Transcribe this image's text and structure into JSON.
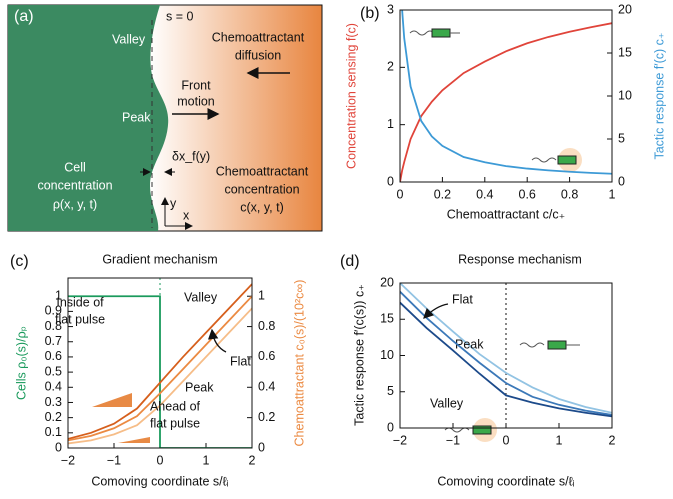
{
  "diagram": {
    "label": "(a)",
    "s_zero": "s = 0",
    "valley": "Valley",
    "peak": "Peak",
    "diffusion": [
      "Chemoattractant",
      "diffusion"
    ],
    "front": [
      "Front",
      "motion"
    ],
    "delta": "δx_f(y)",
    "cell": [
      "Cell",
      "concentration",
      "ρ(x, y, t)"
    ],
    "chemo": [
      "Chemoattractant",
      "concentration",
      "c(x, y, t)"
    ],
    "y_axis": "y",
    "x_axis": "x"
  },
  "chart_data": [
    {
      "type": "line",
      "label": "(b)",
      "x_label": "Chemoattractant   c/c₊",
      "y_label": "Concentration sensing   f(c)",
      "y2_label": "Tactic response   f′(c) c₊",
      "x": [
        0,
        0.01,
        0.02,
        0.05,
        0.1,
        0.15,
        0.2,
        0.3,
        0.4,
        0.5,
        0.6,
        0.7,
        0.8,
        0.9,
        1
      ],
      "xlim": [
        0,
        1
      ],
      "xticks": [
        0,
        0.2,
        0.4,
        0.6,
        0.8,
        1
      ],
      "ylim": [
        0,
        3
      ],
      "yticks": [
        0,
        1,
        2,
        3
      ],
      "y2lim": [
        0,
        20
      ],
      "y2ticks": [
        0,
        5,
        10,
        15,
        20
      ],
      "series": [
        {
          "color": "#e0443a",
          "values": [
            0,
            0.2,
            0.35,
            0.75,
            1.15,
            1.4,
            1.6,
            1.9,
            2.1,
            2.28,
            2.42,
            2.53,
            2.62,
            2.7,
            2.77
          ]
        },
        {
          "color": "#3d9ad6",
          "axis": "y2",
          "values": [
            null,
            20,
            16.7,
            11.1,
            7.1,
            5.3,
            4.2,
            2.9,
            2.3,
            1.85,
            1.56,
            1.35,
            1.19,
            1.06,
            0.96
          ]
        }
      ]
    },
    {
      "type": "line",
      "label": "(c)",
      "title": "Gradient mechanism",
      "x_label": "Comoving coordinate   s/ℓᵢ",
      "y_label": "Cells   ρ₀(s)/ρₚ",
      "y2_label": "Chemoattractant   c₀(s)/(10²c∞)",
      "x": [
        -2,
        -1.5,
        -1,
        -0.5,
        0,
        0.5,
        1,
        1.5,
        2
      ],
      "xlim": [
        -2,
        2
      ],
      "xticks": [
        {
          "value": -2,
          "label": "−2"
        },
        {
          "value": -1,
          "label": "−1"
        },
        0,
        1,
        2
      ],
      "ylim": [
        0,
        1.12
      ],
      "yticks": [
        0,
        0.1,
        0.2,
        0.3,
        0.4,
        0.5,
        0.6,
        0.7,
        0.8,
        0.9,
        1
      ],
      "y2lim": [
        0,
        1.12
      ],
      "y2ticks": [
        0,
        0.2,
        0.4,
        0.6,
        0.8,
        1
      ],
      "annotations": [
        "Inside of",
        "flat pulse",
        "Ahead of",
        "flat pulse"
      ],
      "series": [
        {
          "color": "#1a9a5c",
          "x": [
            -2,
            0,
            0,
            2
          ],
          "values": [
            1,
            1,
            0,
            0
          ]
        },
        {
          "name": "Valley",
          "color": "#d65f1c",
          "axis": "y2",
          "values": [
            0.06,
            0.1,
            0.16,
            0.26,
            0.43,
            0.6,
            0.76,
            0.92,
            1.08
          ]
        },
        {
          "name": "Flat",
          "color": "#eb8a42",
          "axis": "y2",
          "values": [
            0.05,
            0.08,
            0.13,
            0.21,
            0.36,
            0.52,
            0.68,
            0.84,
            1.0
          ]
        },
        {
          "name": "Peak",
          "color": "#f6bd88",
          "axis": "y2",
          "values": [
            0.03,
            0.05,
            0.09,
            0.15,
            0.28,
            0.44,
            0.6,
            0.76,
            0.92
          ]
        }
      ]
    },
    {
      "type": "line",
      "label": "(d)",
      "title": "Response mechanism",
      "x_label": "Comoving coordinate   s/ℓᵢ",
      "y_label": "Tactic response   f′(c(s)) c₊",
      "x": [
        -2,
        -1.5,
        -1,
        -0.5,
        0,
        0.5,
        1,
        1.5,
        2
      ],
      "xlim": [
        -2,
        2
      ],
      "xticks": [
        {
          "value": -2,
          "label": "−2"
        },
        {
          "value": -1,
          "label": "−1"
        },
        0,
        1,
        2
      ],
      "ylim": [
        0,
        20
      ],
      "yticks": [
        0,
        5,
        10,
        15,
        20
      ],
      "series": [
        {
          "name": "Peak",
          "color": "#92c3e3",
          "values": [
            20,
            16.5,
            13.3,
            10.2,
            7.6,
            5.6,
            4.0,
            2.9,
            2.1
          ]
        },
        {
          "name": "Flat",
          "color": "#3b78b8",
          "values": [
            18.8,
            15.2,
            12,
            9,
            6.2,
            4.3,
            3.2,
            2.4,
            1.8
          ]
        },
        {
          "name": "Valley",
          "color": "#1c4a8a",
          "values": [
            17.3,
            13.8,
            10.7,
            7.5,
            4.5,
            3.5,
            2.7,
            2.1,
            1.6
          ]
        }
      ]
    }
  ]
}
